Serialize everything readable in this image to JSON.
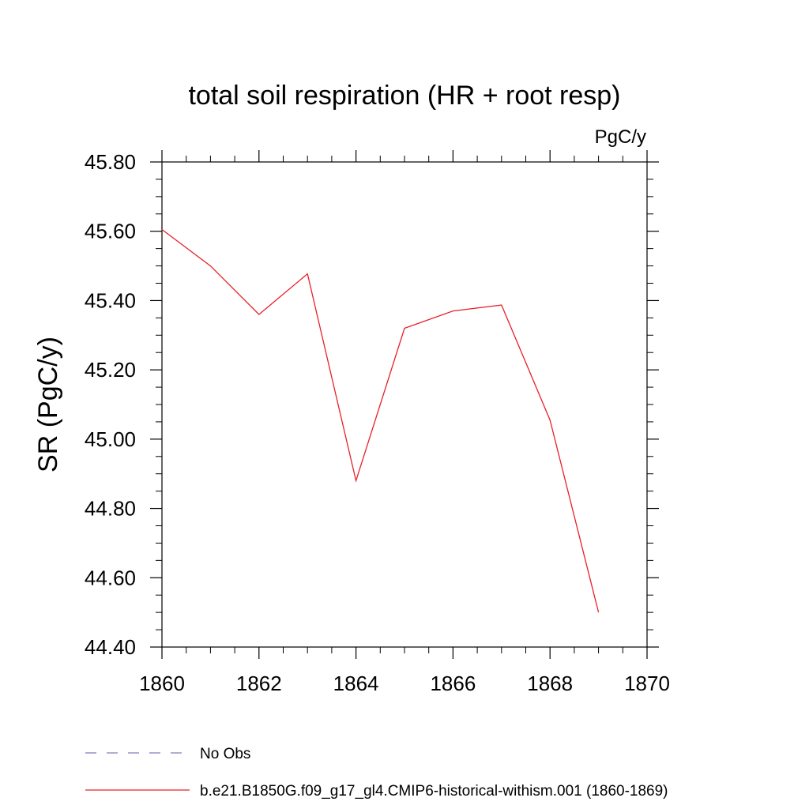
{
  "chart_data": {
    "type": "line",
    "title": "total soil respiration (HR + root resp)",
    "units_label": "PgC/y",
    "xlabel": "",
    "ylabel": "SR  (PgC/y)",
    "xlim": [
      1860,
      1870
    ],
    "ylim": [
      44.4,
      45.8
    ],
    "x_ticks": [
      "1860",
      "1862",
      "1864",
      "1866",
      "1868",
      "1870"
    ],
    "y_ticks": [
      "45.80",
      "45.60",
      "45.40",
      "45.20",
      "45.00",
      "44.80",
      "44.60",
      "44.40"
    ],
    "grid": false,
    "legend_position": "bottom",
    "series": [
      {
        "name": "No Obs",
        "color": "#7f7fbf",
        "dashed": true,
        "x": [],
        "y": []
      },
      {
        "name": "b.e21.B1850G.f09_g17_gl4.CMIP6-historical-withism.001 (1860-1869)",
        "color": "#e8202a",
        "dashed": false,
        "x": [
          1860,
          1861,
          1862,
          1863,
          1864,
          1865,
          1866,
          1867,
          1868,
          1869
        ],
        "y": [
          45.605,
          45.5,
          45.36,
          45.477,
          44.88,
          45.32,
          45.37,
          45.387,
          45.055,
          44.5
        ]
      }
    ]
  }
}
